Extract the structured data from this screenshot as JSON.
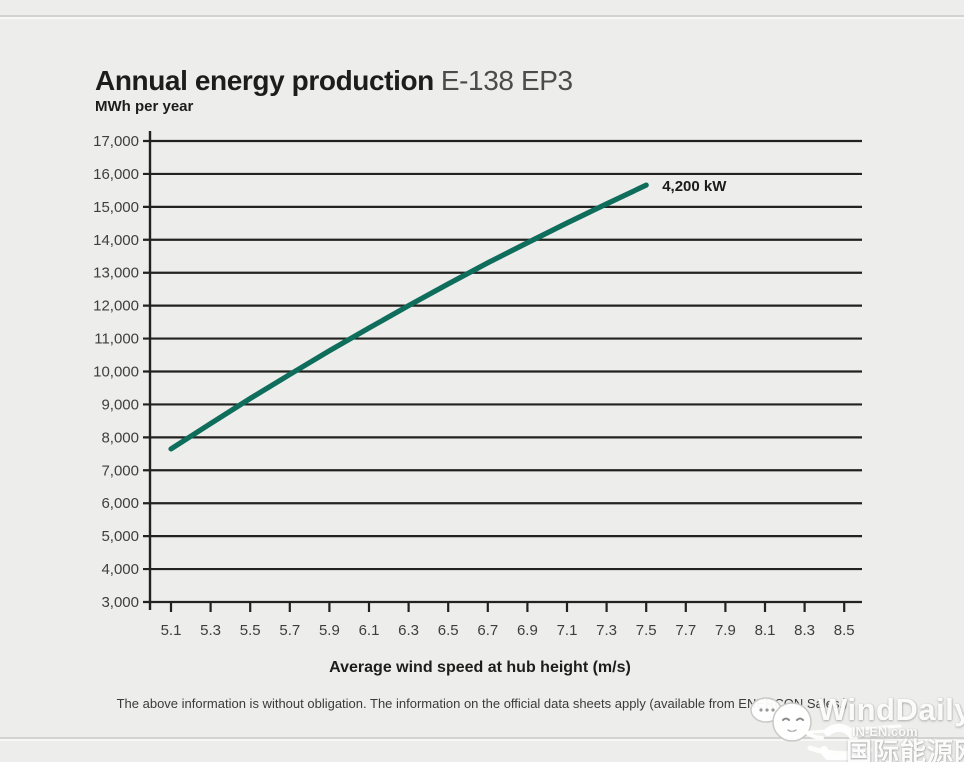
{
  "footnote": {
    "text": "The above information is without obligation. The information on the official data sheets apply (available from ENERCON Sales.)"
  },
  "watermark": {
    "brand": "WindDaily",
    "site": "IN-EN.com",
    "site_cn": "国际能源网"
  },
  "chart_data": {
    "type": "line",
    "title": "Annual energy production",
    "subtitle": "E-138 EP3",
    "ylabel": "MWh per year",
    "xlabel": "Average wind speed at hub height (m/s)",
    "x_ticks": [
      5.1,
      5.3,
      5.5,
      5.7,
      5.9,
      6.1,
      6.3,
      6.5,
      6.7,
      6.9,
      7.1,
      7.3,
      7.5,
      7.7,
      7.9,
      8.1,
      8.3,
      8.5
    ],
    "y_axis": {
      "min": 3000,
      "max": 17000,
      "step": 1000
    },
    "xlim": [
      5.1,
      8.5
    ],
    "grid": true,
    "legend_position": "end-of-line",
    "series": [
      {
        "name": "4,200 kW",
        "x": [
          5.1,
          5.3,
          5.5,
          5.7,
          5.9,
          6.1,
          6.3,
          6.5,
          6.7,
          6.9,
          7.1,
          7.3,
          7.5
        ],
        "y": [
          7650,
          8420,
          9180,
          9910,
          10630,
          11320,
          12000,
          12660,
          13300,
          13910,
          14510,
          15090,
          15660
        ]
      }
    ],
    "annotation": "4,200 kW",
    "colors": {
      "line": "#0e6e5b",
      "grid": "#22221f",
      "tick_text": "#3e3e3c",
      "annotation": "#1b1b19",
      "background": "#ededec"
    }
  }
}
